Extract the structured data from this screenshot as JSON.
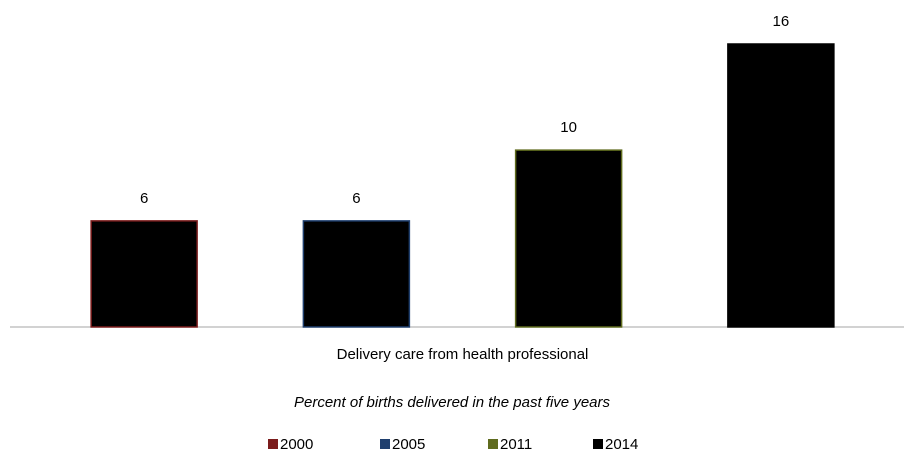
{
  "chart_data": {
    "type": "bar",
    "categories": [
      "Delivery care from health professional"
    ],
    "subtitle": "Percent of births delivered in the past five years",
    "bar_fill": "#000000",
    "series": [
      {
        "name": "2000",
        "color": "#7b1c1c",
        "values": [
          6
        ]
      },
      {
        "name": "2005",
        "color": "#1f3f6e",
        "values": [
          6
        ]
      },
      {
        "name": "2011",
        "color": "#5f6b1e",
        "values": [
          10
        ]
      },
      {
        "name": "2014",
        "color": "#000000",
        "values": [
          16
        ]
      }
    ]
  }
}
